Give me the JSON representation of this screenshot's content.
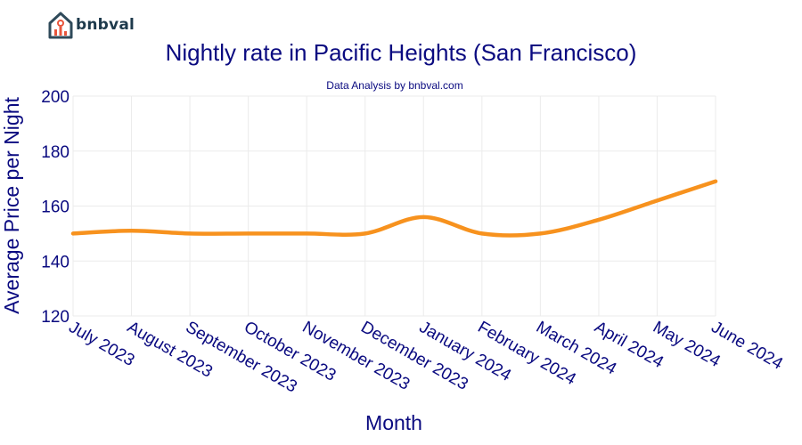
{
  "brand": {
    "name": "bnbval",
    "logo_icon": "house-chart-icon"
  },
  "chart_data": {
    "type": "line",
    "title": "Nightly rate in Pacific Heights (San Francisco)",
    "subtitle": "Data Analysis by bnbval.com",
    "xlabel": "Month",
    "ylabel": "Average Price per Night",
    "categories": [
      "July 2023",
      "August 2023",
      "September 2023",
      "October 2023",
      "November 2023",
      "December 2023",
      "January 2024",
      "February 2024",
      "March 2024",
      "April 2024",
      "May 2024",
      "June 2024"
    ],
    "series": [
      {
        "values": [
          150,
          151,
          150,
          150,
          150,
          150,
          156,
          150,
          150,
          155,
          162,
          169
        ]
      }
    ],
    "ylim": [
      120,
      200
    ],
    "yticks": [
      120,
      140,
      160,
      180,
      200
    ],
    "grid": true,
    "line_color": "#f7921e",
    "text_color": "#0a0a80"
  }
}
